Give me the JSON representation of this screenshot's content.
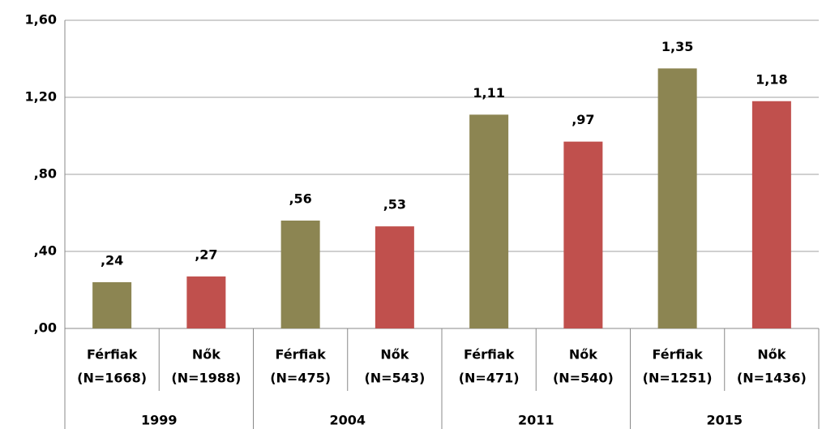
{
  "chart_data": {
    "type": "bar",
    "categories": [
      [
        "Férfiak",
        "(N=1668)"
      ],
      [
        "Nők",
        "(N=1988)"
      ],
      [
        "Férfiak",
        "(N=475)"
      ],
      [
        "Nők",
        "(N=543)"
      ],
      [
        "Férfiak",
        "(N=471)"
      ],
      [
        "Nők",
        "(N=540)"
      ],
      [
        "Férfiak",
        "(N=1251)"
      ],
      [
        "Nők",
        "(N=1436)"
      ]
    ],
    "groups": [
      "1999",
      "2004",
      "2011",
      "2015"
    ],
    "values": [
      0.24,
      0.27,
      0.56,
      0.53,
      1.11,
      0.97,
      1.35,
      1.18
    ],
    "value_labels": [
      ",24",
      ",27",
      ",56",
      ",53",
      "1,11",
      ",97",
      "1,35",
      "1,18"
    ],
    "colors": [
      "#8c8552",
      "#c0504d",
      "#8c8552",
      "#c0504d",
      "#8c8552",
      "#c0504d",
      "#8c8552",
      "#c0504d"
    ],
    "ylim": [
      0,
      1.6
    ],
    "yticks": [
      {
        "value": 0,
        "label": ",00"
      },
      {
        "value": 0.4,
        "label": ",40"
      },
      {
        "value": 0.8,
        "label": ",80"
      },
      {
        "value": 1.2,
        "label": "1,20"
      },
      {
        "value": 1.6,
        "label": "1,60"
      }
    ],
    "grid": true
  }
}
